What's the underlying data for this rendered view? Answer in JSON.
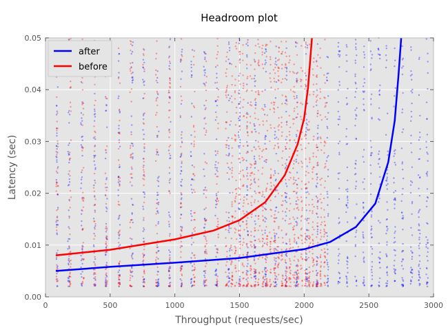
{
  "chart_data": {
    "type": "scatter",
    "title": "Headroom plot",
    "xlabel": "Throughput (requests/sec)",
    "ylabel": "Latency (sec)",
    "xlim": [
      0,
      3000
    ],
    "ylim": [
      0,
      0.05
    ],
    "xticks": [
      0,
      500,
      1000,
      1500,
      2000,
      2500,
      3000
    ],
    "xtick_labels": [
      "0",
      "500",
      "1000",
      "1500",
      "2000",
      "2500",
      "3000"
    ],
    "yticks": [
      0,
      0.01,
      0.02,
      0.03,
      0.04,
      0.05
    ],
    "ytick_labels": [
      "0.00",
      "0.01",
      "0.02",
      "0.03",
      "0.04",
      "0.05"
    ],
    "grid": true,
    "legend_placement": "top-left",
    "background_color": "#e5e5e5",
    "series": [
      {
        "name": "after",
        "color": "#0000ff",
        "fit_x": [
          80,
          500,
          1000,
          1500,
          2000,
          2200,
          2400,
          2550,
          2650,
          2700,
          2730,
          2750
        ],
        "fit_y": [
          0.005,
          0.0058,
          0.0066,
          0.0075,
          0.0092,
          0.0106,
          0.0135,
          0.018,
          0.026,
          0.034,
          0.043,
          0.05
        ],
        "scatter_columns_x": [
          90,
          180,
          280,
          380,
          470,
          570,
          670,
          760,
          870,
          960,
          1050,
          1130,
          1230,
          1320,
          1420,
          1500,
          1560,
          1620,
          1700,
          1780,
          1860,
          1940,
          2020,
          2100,
          2180,
          2270,
          2330,
          2400,
          2460,
          2520,
          2580,
          2640,
          2700,
          2760,
          2830,
          2890,
          2950
        ],
        "scatter_y_range": [
          0.002,
          0.05
        ]
      },
      {
        "name": "before",
        "color": "#ff0000",
        "fit_x": [
          80,
          500,
          1000,
          1300,
          1500,
          1700,
          1850,
          1950,
          2000,
          2030,
          2060
        ],
        "fit_y": [
          0.008,
          0.0091,
          0.0111,
          0.0128,
          0.0148,
          0.0183,
          0.0235,
          0.0295,
          0.0345,
          0.0405,
          0.05
        ],
        "scatter_columns_x": [
          90,
          190,
          290,
          380,
          470,
          570,
          660,
          760,
          860,
          960,
          1050,
          1150,
          1240,
          1330,
          1400,
          1440,
          1470,
          1500,
          1530,
          1560,
          1590,
          1620,
          1650,
          1680,
          1710,
          1740,
          1770,
          1800,
          1830,
          1860,
          1890,
          1920,
          1950,
          1980,
          2010,
          2040,
          2070,
          2100,
          2130,
          2160
        ],
        "scatter_y_range": [
          0.002,
          0.05
        ]
      }
    ]
  }
}
